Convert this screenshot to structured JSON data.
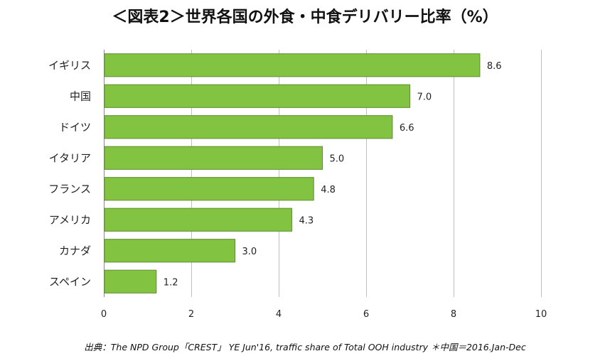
{
  "title": "＜図表2＞世界各国の外食・中食デリバリー比率（%）",
  "source_note": "出典：The NPD Group「CREST」 YE Jun'16,  traffic share of Total OOH industry   ＊中国＝2016.Jan-Dec",
  "colors": {
    "bar": "#82C341",
    "bar_border": "#5E8F2D",
    "grid": "#BFBFBF",
    "axis": "#888888"
  },
  "chart_data": {
    "type": "bar",
    "orientation": "horizontal",
    "categories": [
      "イギリス",
      "中国",
      "ドイツ",
      "イタリア",
      "フランス",
      "アメリカ",
      "カナダ",
      "スペイン"
    ],
    "values": [
      8.6,
      7.0,
      6.6,
      5.0,
      4.8,
      4.3,
      3.0,
      1.2
    ],
    "value_labels": [
      "8.6",
      "7.0",
      "6.6",
      "5.0",
      "4.8",
      "4.3",
      "3.0",
      "1.2"
    ],
    "xlim": [
      0,
      10
    ],
    "xticks": [
      0,
      2,
      4,
      6,
      8,
      10
    ],
    "grid": true,
    "legend": "none"
  }
}
